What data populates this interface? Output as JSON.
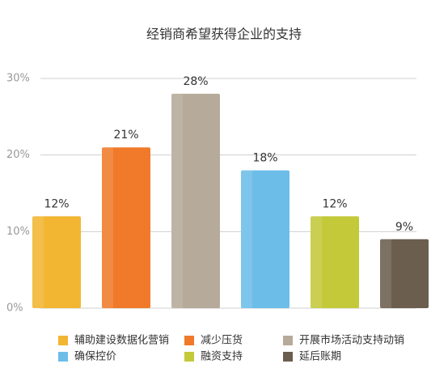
{
  "chart_data": {
    "type": "bar",
    "title": "经销商希望获得企业的支持",
    "categories": [
      "辅助建设数据化营销",
      "减少压货",
      "开展市场活动支持动销",
      "确保控价",
      "融资支持",
      "延后账期"
    ],
    "values": [
      12,
      21,
      28,
      18,
      12,
      9
    ],
    "value_labels": [
      "12%",
      "21%",
      "28%",
      "18%",
      "12%",
      "9%"
    ],
    "colors": [
      "#f2b632",
      "#f07a2a",
      "#b6aa9a",
      "#6dbde9",
      "#c4c93a",
      "#6b5e4f"
    ],
    "ylim": [
      0,
      30
    ],
    "yticks": [
      {
        "value": 0,
        "label": "0%"
      },
      {
        "value": 10,
        "label": "10%"
      },
      {
        "value": 20,
        "label": "20%"
      },
      {
        "value": 30,
        "label": "30%"
      }
    ],
    "grid": true
  }
}
